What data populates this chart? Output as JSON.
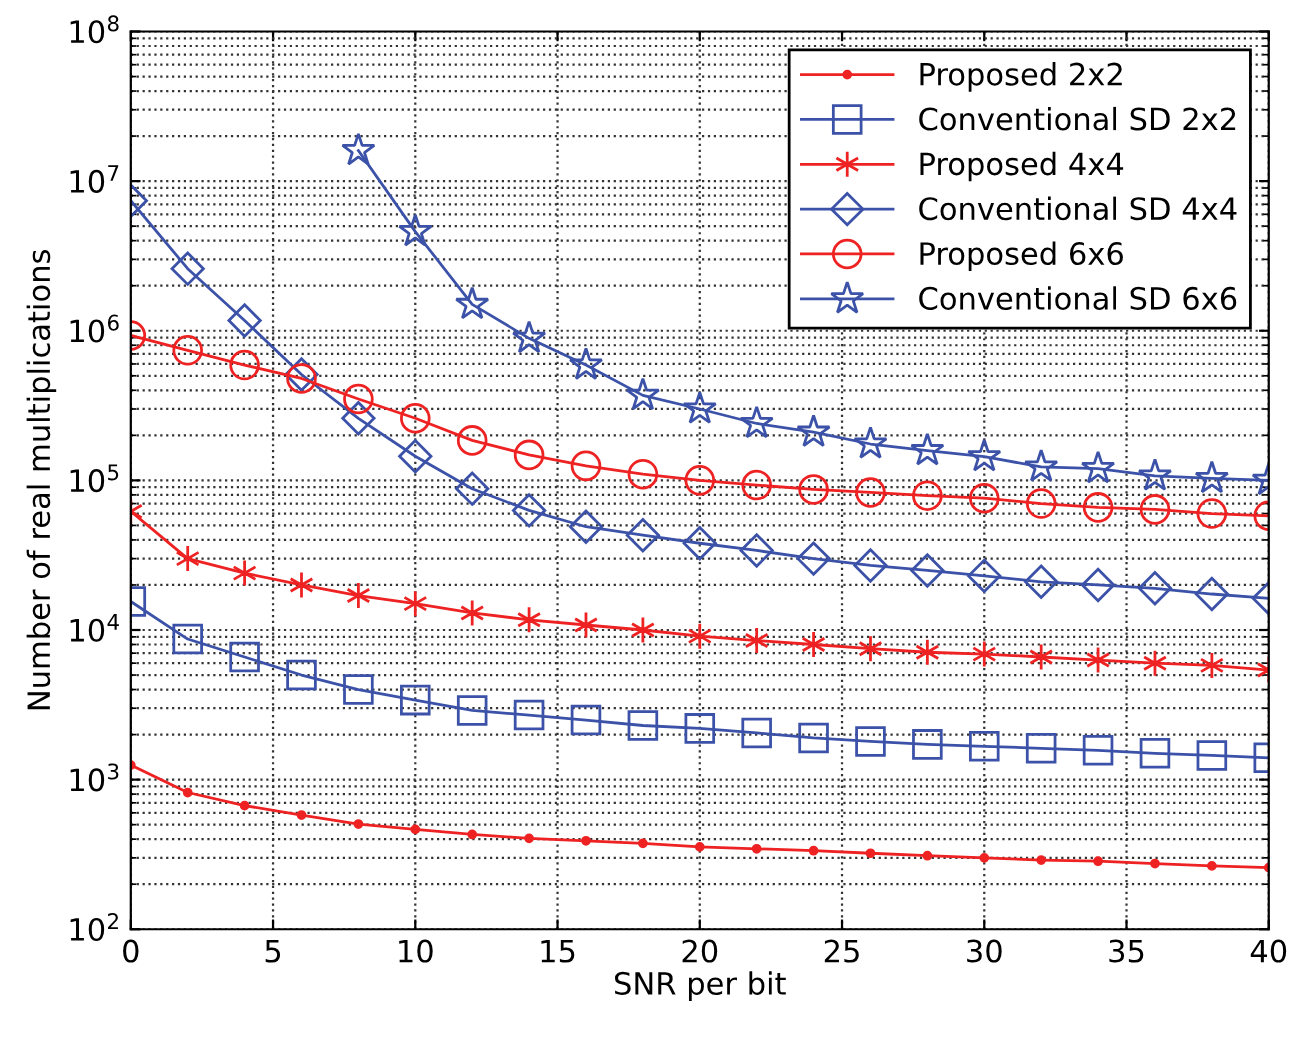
{
  "chart_data": {
    "type": "line",
    "xlabel": "SNR per bit",
    "ylabel": "Number of real multiplications",
    "x": [
      0,
      2,
      4,
      6,
      8,
      10,
      12,
      14,
      16,
      18,
      20,
      22,
      24,
      26,
      28,
      30,
      32,
      34,
      36,
      38,
      40
    ],
    "series": [
      {
        "name": "Proposed 2x2",
        "color": "#ee2222",
        "marker": "point",
        "values": [
          1250,
          820,
          670,
          580,
          505,
          465,
          430,
          405,
          390,
          375,
          355,
          345,
          335,
          322,
          310,
          300,
          290,
          285,
          275,
          265,
          258
        ]
      },
      {
        "name": "Conventional SD 2x2",
        "color": "#3b52a8",
        "marker": "square",
        "values": [
          15500,
          8700,
          6600,
          5000,
          4000,
          3400,
          2900,
          2700,
          2500,
          2300,
          2200,
          2050,
          1900,
          1800,
          1720,
          1670,
          1620,
          1570,
          1500,
          1450,
          1400
        ]
      },
      {
        "name": "Proposed 4x4",
        "color": "#ee2222",
        "marker": "cross",
        "values": [
          62000,
          30000,
          24000,
          20000,
          17000,
          15000,
          13000,
          11700,
          10800,
          10000,
          9100,
          8500,
          8000,
          7500,
          7100,
          6900,
          6600,
          6300,
          6000,
          5800,
          5400
        ]
      },
      {
        "name": "Conventional SD 4x4",
        "color": "#3b52a8",
        "marker": "diamond",
        "values": [
          7400000,
          2600000,
          1170000,
          510000,
          260000,
          145000,
          88000,
          63000,
          49000,
          43000,
          38000,
          34000,
          30000,
          27000,
          25000,
          23000,
          21000,
          20000,
          19000,
          17400,
          16300
        ]
      },
      {
        "name": "Proposed 6x6",
        "color": "#ee2222",
        "marker": "circle",
        "values": [
          930000,
          740000,
          590000,
          480000,
          350000,
          260000,
          185000,
          148000,
          125000,
          110000,
          100000,
          93000,
          87000,
          83000,
          79000,
          76000,
          70000,
          66000,
          64000,
          60000,
          58000
        ]
      },
      {
        "name": "Conventional SD 6x6",
        "color": "#3b52a8",
        "marker": "star",
        "values": [
          null,
          null,
          null,
          null,
          16000000,
          4600000,
          1500000,
          890000,
          590000,
          370000,
          300000,
          240000,
          210000,
          175000,
          158000,
          144000,
          123000,
          120000,
          107000,
          103000,
          100000
        ]
      }
    ],
    "log": "y",
    "xlim": [
      0,
      40
    ],
    "xticks": [
      0,
      5,
      10,
      15,
      20,
      25,
      30,
      35,
      40
    ],
    "ylim": [
      100,
      100000000
    ],
    "yticks": [
      {
        "value": 100,
        "label": "10$^{2}$"
      },
      {
        "value": 1000,
        "label": "10$^{3}$"
      },
      {
        "value": 10000,
        "label": "10$^{4}$"
      },
      {
        "value": 100000,
        "label": "10$^{5}$"
      },
      {
        "value": 1000000,
        "label": "10$^{6}$"
      },
      {
        "value": 10000000,
        "label": "10$^{7}$"
      },
      {
        "value": 100000000,
        "label": "10$^{8}$"
      }
    ],
    "grid": true,
    "legend": "top right",
    "line_style": "solid"
  }
}
